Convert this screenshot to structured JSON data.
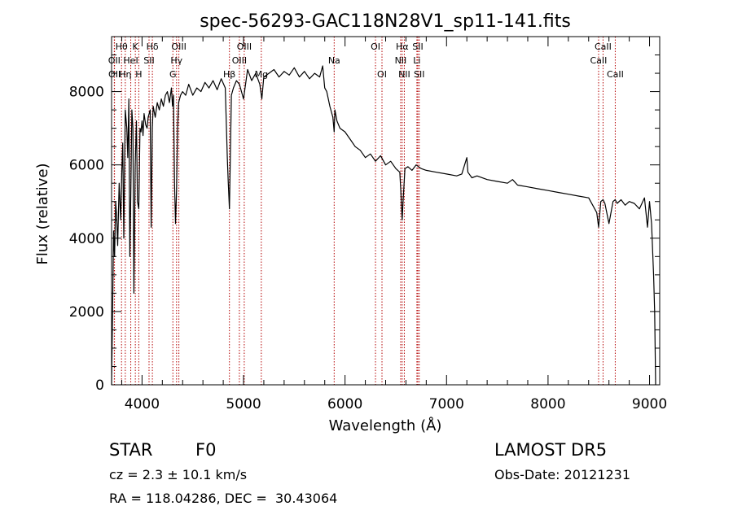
{
  "chart_data": {
    "type": "line",
    "title": "spec-56293-GAC118N28V1_sp11-141.fits",
    "xlabel": "Wavelength (Å)",
    "ylabel": "Flux (relative)",
    "xlim": [
      3700,
      9100
    ],
    "ylim": [
      0,
      9500
    ],
    "x_ticks": [
      4000,
      5000,
      6000,
      7000,
      8000,
      9000
    ],
    "y_ticks": [
      0,
      2000,
      4000,
      6000,
      8000
    ],
    "grid": false,
    "series": [
      {
        "x": [
          3700,
          3710,
          3720,
          3730,
          3740,
          3750,
          3760,
          3775,
          3790,
          3800,
          3810,
          3820,
          3835,
          3850,
          3860,
          3870,
          3880,
          3889,
          3900,
          3910,
          3920,
          3933,
          3945,
          3955,
          3968,
          3980,
          3990,
          4000,
          4010,
          4020,
          4035,
          4050,
          4060,
          4080,
          4090,
          4101,
          4110,
          4130,
          4150,
          4170,
          4190,
          4210,
          4230,
          4250,
          4270,
          4290,
          4300,
          4310,
          4320,
          4330,
          4340,
          4350,
          4360,
          4380,
          4400,
          4430,
          4460,
          4500,
          4540,
          4580,
          4620,
          4660,
          4700,
          4740,
          4780,
          4820,
          4840,
          4850,
          4861,
          4870,
          4880,
          4900,
          4930,
          4960,
          5000,
          5040,
          5080,
          5120,
          5160,
          5180,
          5200,
          5250,
          5300,
          5350,
          5400,
          5450,
          5500,
          5550,
          5600,
          5650,
          5700,
          5750,
          5780,
          5800,
          5820,
          5850,
          5880,
          5893,
          5900,
          5920,
          5950,
          6000,
          6050,
          6100,
          6150,
          6200,
          6250,
          6300,
          6350,
          6400,
          6450,
          6500,
          6540,
          6555,
          6563,
          6572,
          6590,
          6620,
          6660,
          6700,
          6750,
          6800,
          6900,
          7000,
          7100,
          7150,
          7200,
          7210,
          7250,
          7300,
          7400,
          7500,
          7600,
          7650,
          7700,
          7800,
          7900,
          8000,
          8100,
          8200,
          8300,
          8400,
          8480,
          8498,
          8520,
          8542,
          8560,
          8600,
          8640,
          8662,
          8680,
          8720,
          8760,
          8800,
          8850,
          8900,
          8950,
          8980,
          9000,
          9020,
          9040,
          9050,
          9060
        ],
        "y": [
          0,
          2000,
          4200,
          3500,
          5000,
          4600,
          3800,
          5500,
          4500,
          5800,
          6600,
          4000,
          7500,
          7000,
          6200,
          7800,
          3500,
          5200,
          7500,
          7000,
          2500,
          6000,
          7200,
          5000,
          4800,
          7000,
          6900,
          7200,
          6800,
          7400,
          7100,
          7000,
          7300,
          7500,
          4300,
          7000,
          7600,
          7300,
          7700,
          7500,
          7800,
          7600,
          7900,
          8000,
          7700,
          8100,
          7600,
          7900,
          5500,
          4400,
          5300,
          7000,
          7700,
          7900,
          8000,
          7900,
          8200,
          7900,
          8100,
          8000,
          8250,
          8100,
          8300,
          8050,
          8350,
          8100,
          6200,
          5500,
          4800,
          6200,
          7900,
          8100,
          8300,
          8200,
          7800,
          8600,
          8300,
          8500,
          8200,
          7800,
          8400,
          8500,
          8600,
          8400,
          8550,
          8450,
          8650,
          8400,
          8550,
          8350,
          8500,
          8400,
          8700,
          8100,
          8000,
          7600,
          7300,
          6900,
          7500,
          7200,
          7000,
          6900,
          6700,
          6500,
          6400,
          6200,
          6300,
          6100,
          6250,
          6000,
          6100,
          5900,
          5800,
          5000,
          4500,
          5000,
          5900,
          5950,
          5850,
          6000,
          5900,
          5850,
          5800,
          5750,
          5700,
          5750,
          6200,
          5800,
          5650,
          5700,
          5600,
          5550,
          5500,
          5600,
          5450,
          5400,
          5350,
          5300,
          5250,
          5200,
          5150,
          5100,
          4700,
          4300,
          5000,
          5050,
          4950,
          4400,
          5000,
          5050,
          4950,
          5050,
          4900,
          5000,
          4950,
          4800,
          5100,
          4300,
          5000,
          4400,
          3000,
          2000,
          0
        ]
      }
    ],
    "lines": [
      {
        "label": "Hθ",
        "x": 3798,
        "row": 1
      },
      {
        "label": "K",
        "x": 3934,
        "row": 1
      },
      {
        "label": "Hδ",
        "x": 4102,
        "row": 1
      },
      {
        "label": "OIII",
        "x": 4363,
        "row": 1
      },
      {
        "label": "OIII",
        "x": 5007,
        "row": 1
      },
      {
        "label": "OI",
        "x": 6300,
        "row": 1
      },
      {
        "label": "Hα",
        "x": 6563,
        "row": 1
      },
      {
        "label": "SII",
        "x": 6717,
        "row": 1
      },
      {
        "label": "CaII",
        "x": 8542,
        "row": 1
      },
      {
        "label": "OII",
        "x": 3727,
        "row": 2
      },
      {
        "label": "HeI",
        "x": 3889,
        "row": 2
      },
      {
        "label": "SII",
        "x": 4069,
        "row": 2
      },
      {
        "label": "Hγ",
        "x": 4340,
        "row": 2
      },
      {
        "label": "OIII",
        "x": 4959,
        "row": 2
      },
      {
        "label": "Na",
        "x": 5893,
        "row": 2
      },
      {
        "label": "NII",
        "x": 6548,
        "row": 2
      },
      {
        "label": "Li",
        "x": 6708,
        "row": 2
      },
      {
        "label": "CaII",
        "x": 8498,
        "row": 2
      },
      {
        "label": "OII",
        "x": 3729,
        "row": 3
      },
      {
        "label": "Hη",
        "x": 3835,
        "row": 3
      },
      {
        "label": "H",
        "x": 3968,
        "row": 3
      },
      {
        "label": "G",
        "x": 4304,
        "row": 3
      },
      {
        "label": "Hβ",
        "x": 4861,
        "row": 3
      },
      {
        "label": "Mg",
        "x": 5175,
        "row": 3
      },
      {
        "label": "OI",
        "x": 6364,
        "row": 3
      },
      {
        "label": "NII",
        "x": 6584,
        "row": 3
      },
      {
        "label": "SII",
        "x": 6731,
        "row": 3
      },
      {
        "label": "CaII",
        "x": 8662,
        "row": 3
      }
    ]
  },
  "info": {
    "star_type": "STAR",
    "spectral_class": "F0",
    "survey": "LAMOST DR5",
    "redshift": "cz = 2.3 ± 10.1 km/s",
    "obs_date": "Obs-Date: 20121231",
    "coords": "RA = 118.04286, DEC =  30.43064"
  }
}
